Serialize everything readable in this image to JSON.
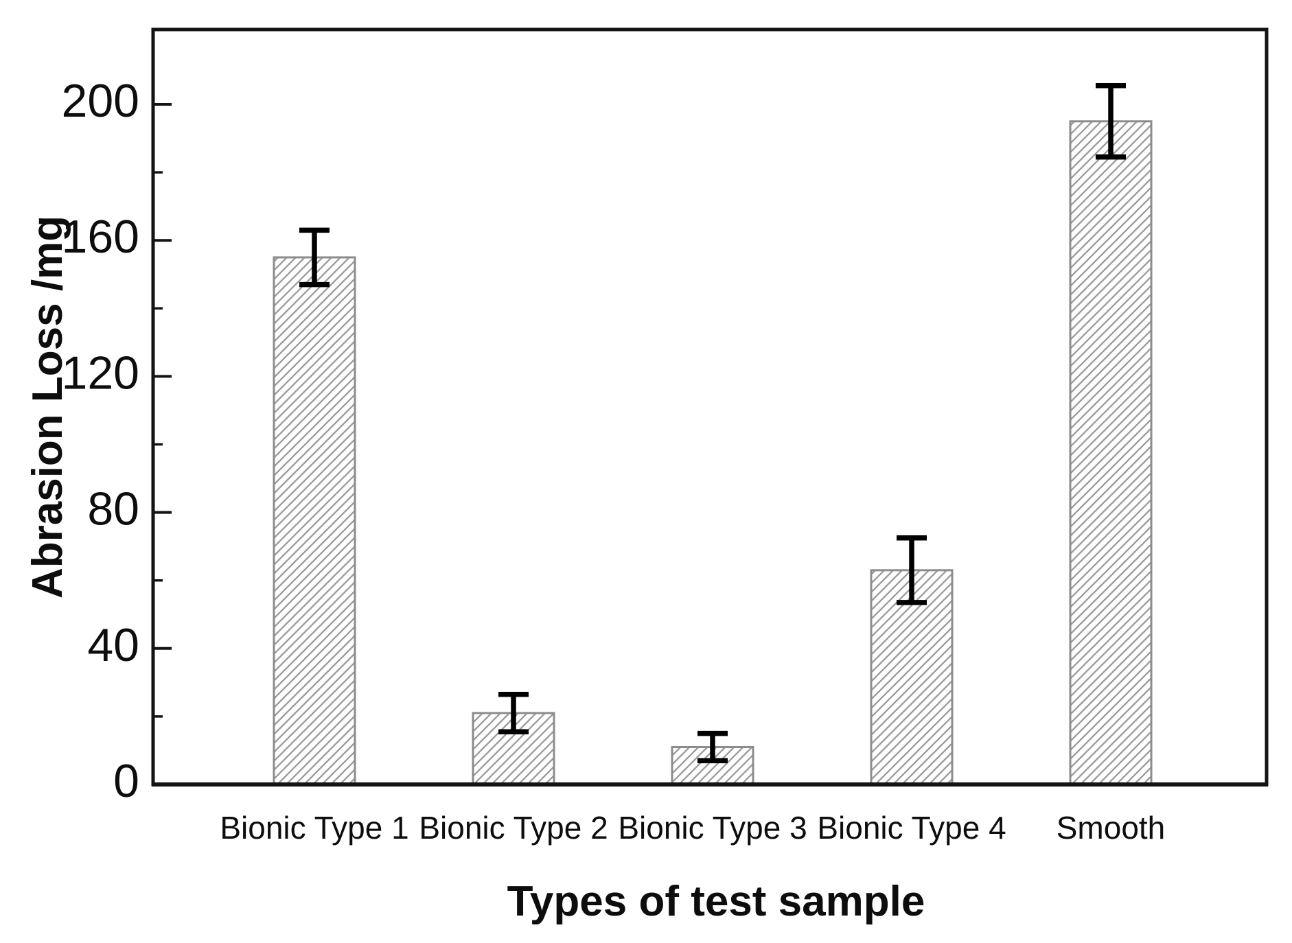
{
  "chart_data": {
    "type": "bar",
    "title": "",
    "xlabel": "Types of test sample",
    "ylabel": "Abrasion Loss /mg",
    "categories": [
      "Bionic Type 1",
      "Bionic Type 2",
      "Bionic Type 3",
      "Bionic Type 4",
      "Smooth"
    ],
    "values": [
      155,
      21,
      11,
      63,
      195
    ],
    "error_bars": [
      8,
      5.5,
      4,
      9.5,
      10.5
    ],
    "ylim": [
      0,
      222
    ],
    "yticks_major": [
      0,
      40,
      80,
      120,
      160,
      200
    ],
    "yticks_minor": [
      20,
      60,
      100,
      140,
      180
    ],
    "grid": false,
    "legend": "none",
    "bar_fill_style": "white-with-diagonal-hatch",
    "colors": {
      "background": "#ffffff",
      "axis": "#141414",
      "text": "#0d0d0d",
      "bar_border": "#8c8c8c",
      "hatch": "#9a9a9a",
      "error_bar": "#000000"
    }
  }
}
